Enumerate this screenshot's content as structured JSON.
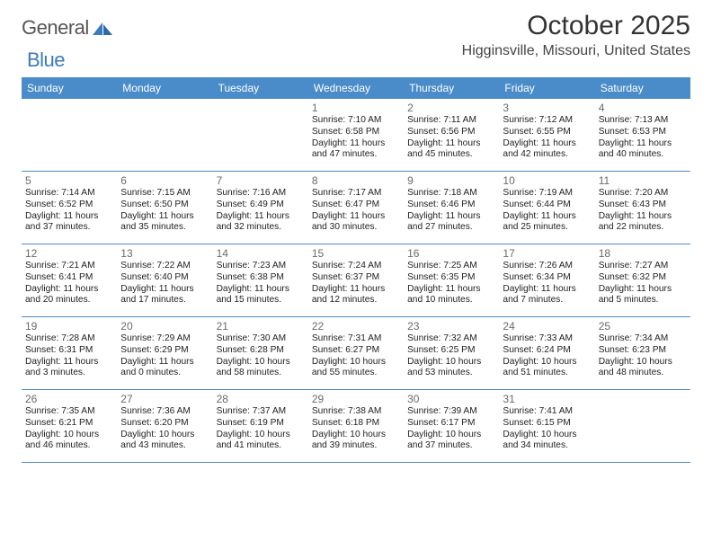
{
  "logo": {
    "text1": "General",
    "text2": "Blue"
  },
  "title": "October 2025",
  "location": "Higginsville, Missouri, United States",
  "header_bg": "#4a8cc9",
  "dayHeaders": [
    "Sunday",
    "Monday",
    "Tuesday",
    "Wednesday",
    "Thursday",
    "Friday",
    "Saturday"
  ],
  "weeks": [
    [
      null,
      null,
      null,
      {
        "d": "1",
        "sr": "7:10 AM",
        "ss": "6:58 PM",
        "dl": "11 hours and 47 minutes."
      },
      {
        "d": "2",
        "sr": "7:11 AM",
        "ss": "6:56 PM",
        "dl": "11 hours and 45 minutes."
      },
      {
        "d": "3",
        "sr": "7:12 AM",
        "ss": "6:55 PM",
        "dl": "11 hours and 42 minutes."
      },
      {
        "d": "4",
        "sr": "7:13 AM",
        "ss": "6:53 PM",
        "dl": "11 hours and 40 minutes."
      }
    ],
    [
      {
        "d": "5",
        "sr": "7:14 AM",
        "ss": "6:52 PM",
        "dl": "11 hours and 37 minutes."
      },
      {
        "d": "6",
        "sr": "7:15 AM",
        "ss": "6:50 PM",
        "dl": "11 hours and 35 minutes."
      },
      {
        "d": "7",
        "sr": "7:16 AM",
        "ss": "6:49 PM",
        "dl": "11 hours and 32 minutes."
      },
      {
        "d": "8",
        "sr": "7:17 AM",
        "ss": "6:47 PM",
        "dl": "11 hours and 30 minutes."
      },
      {
        "d": "9",
        "sr": "7:18 AM",
        "ss": "6:46 PM",
        "dl": "11 hours and 27 minutes."
      },
      {
        "d": "10",
        "sr": "7:19 AM",
        "ss": "6:44 PM",
        "dl": "11 hours and 25 minutes."
      },
      {
        "d": "11",
        "sr": "7:20 AM",
        "ss": "6:43 PM",
        "dl": "11 hours and 22 minutes."
      }
    ],
    [
      {
        "d": "12",
        "sr": "7:21 AM",
        "ss": "6:41 PM",
        "dl": "11 hours and 20 minutes."
      },
      {
        "d": "13",
        "sr": "7:22 AM",
        "ss": "6:40 PM",
        "dl": "11 hours and 17 minutes."
      },
      {
        "d": "14",
        "sr": "7:23 AM",
        "ss": "6:38 PM",
        "dl": "11 hours and 15 minutes."
      },
      {
        "d": "15",
        "sr": "7:24 AM",
        "ss": "6:37 PM",
        "dl": "11 hours and 12 minutes."
      },
      {
        "d": "16",
        "sr": "7:25 AM",
        "ss": "6:35 PM",
        "dl": "11 hours and 10 minutes."
      },
      {
        "d": "17",
        "sr": "7:26 AM",
        "ss": "6:34 PM",
        "dl": "11 hours and 7 minutes."
      },
      {
        "d": "18",
        "sr": "7:27 AM",
        "ss": "6:32 PM",
        "dl": "11 hours and 5 minutes."
      }
    ],
    [
      {
        "d": "19",
        "sr": "7:28 AM",
        "ss": "6:31 PM",
        "dl": "11 hours and 3 minutes."
      },
      {
        "d": "20",
        "sr": "7:29 AM",
        "ss": "6:29 PM",
        "dl": "11 hours and 0 minutes."
      },
      {
        "d": "21",
        "sr": "7:30 AM",
        "ss": "6:28 PM",
        "dl": "10 hours and 58 minutes."
      },
      {
        "d": "22",
        "sr": "7:31 AM",
        "ss": "6:27 PM",
        "dl": "10 hours and 55 minutes."
      },
      {
        "d": "23",
        "sr": "7:32 AM",
        "ss": "6:25 PM",
        "dl": "10 hours and 53 minutes."
      },
      {
        "d": "24",
        "sr": "7:33 AM",
        "ss": "6:24 PM",
        "dl": "10 hours and 51 minutes."
      },
      {
        "d": "25",
        "sr": "7:34 AM",
        "ss": "6:23 PM",
        "dl": "10 hours and 48 minutes."
      }
    ],
    [
      {
        "d": "26",
        "sr": "7:35 AM",
        "ss": "6:21 PM",
        "dl": "10 hours and 46 minutes."
      },
      {
        "d": "27",
        "sr": "7:36 AM",
        "ss": "6:20 PM",
        "dl": "10 hours and 43 minutes."
      },
      {
        "d": "28",
        "sr": "7:37 AM",
        "ss": "6:19 PM",
        "dl": "10 hours and 41 minutes."
      },
      {
        "d": "29",
        "sr": "7:38 AM",
        "ss": "6:18 PM",
        "dl": "10 hours and 39 minutes."
      },
      {
        "d": "30",
        "sr": "7:39 AM",
        "ss": "6:17 PM",
        "dl": "10 hours and 37 minutes."
      },
      {
        "d": "31",
        "sr": "7:41 AM",
        "ss": "6:15 PM",
        "dl": "10 hours and 34 minutes."
      },
      null
    ]
  ],
  "labels": {
    "sunrise": "Sunrise:",
    "sunset": "Sunset:",
    "daylight": "Daylight:"
  }
}
